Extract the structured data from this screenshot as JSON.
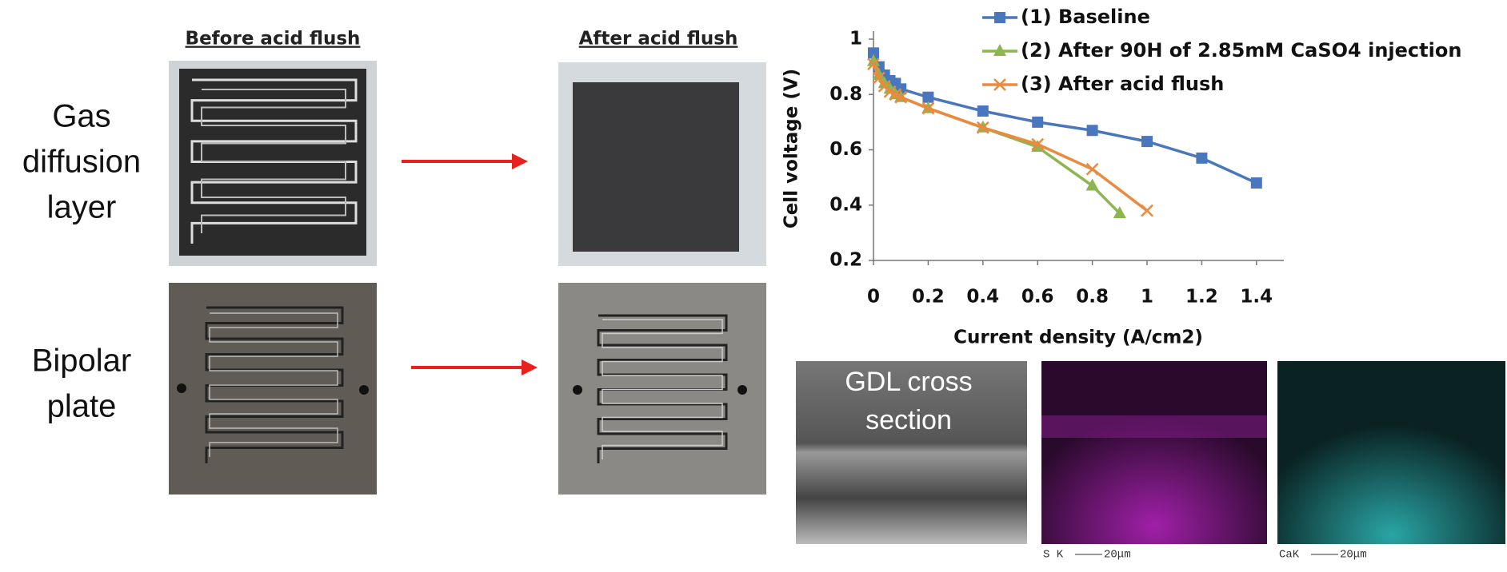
{
  "chart_data": {
    "type": "line",
    "x_label": "Current density (A/cm2)",
    "y_label": "Cell voltage (V)",
    "xlim": [
      0,
      1.5
    ],
    "ylim": [
      0.2,
      1.0
    ],
    "xticks": [
      0,
      0.2,
      0.4,
      0.6,
      0.8,
      1,
      1.2,
      1.4
    ],
    "yticks": [
      0.2,
      0.4,
      0.6,
      0.8,
      1
    ],
    "legend": "top-right",
    "series": [
      {
        "name": "(1) Baseline",
        "color": "#4a76bd",
        "marker": "square",
        "x": [
          0,
          0.02,
          0.04,
          0.06,
          0.08,
          0.1,
          0.2,
          0.4,
          0.6,
          0.8,
          1.0,
          1.2,
          1.4
        ],
        "values": [
          0.95,
          0.9,
          0.87,
          0.85,
          0.84,
          0.82,
          0.79,
          0.74,
          0.7,
          0.67,
          0.63,
          0.57,
          0.48
        ]
      },
      {
        "name": "(2) After 90H of 2.85mM CaSO4 injection",
        "color": "#8db550",
        "marker": "triangle",
        "x": [
          0,
          0.02,
          0.04,
          0.06,
          0.08,
          0.1,
          0.2,
          0.4,
          0.6,
          0.8,
          0.9
        ],
        "values": [
          0.92,
          0.87,
          0.84,
          0.82,
          0.8,
          0.79,
          0.75,
          0.68,
          0.61,
          0.47,
          0.37
        ]
      },
      {
        "name": "(3) After acid flush",
        "color": "#e98a3f",
        "marker": "cross",
        "x": [
          0,
          0.02,
          0.04,
          0.06,
          0.08,
          0.1,
          0.2,
          0.4,
          0.6,
          0.8,
          1.0
        ],
        "values": [
          0.91,
          0.86,
          0.83,
          0.81,
          0.8,
          0.79,
          0.75,
          0.68,
          0.62,
          0.53,
          0.38
        ]
      }
    ]
  },
  "photos": {
    "before_header": "Before acid flush",
    "after_header": "After acid flush",
    "row_labels": [
      [
        "Gas",
        "diffusion",
        "layer"
      ],
      [
        "Bipolar",
        "plate"
      ]
    ]
  },
  "micrographs": {
    "caption": [
      "GDL cross",
      "section"
    ],
    "labels": [
      {
        "element": "S K",
        "scale": "20μm"
      },
      {
        "element": "CaK",
        "scale": "20μm"
      }
    ]
  }
}
